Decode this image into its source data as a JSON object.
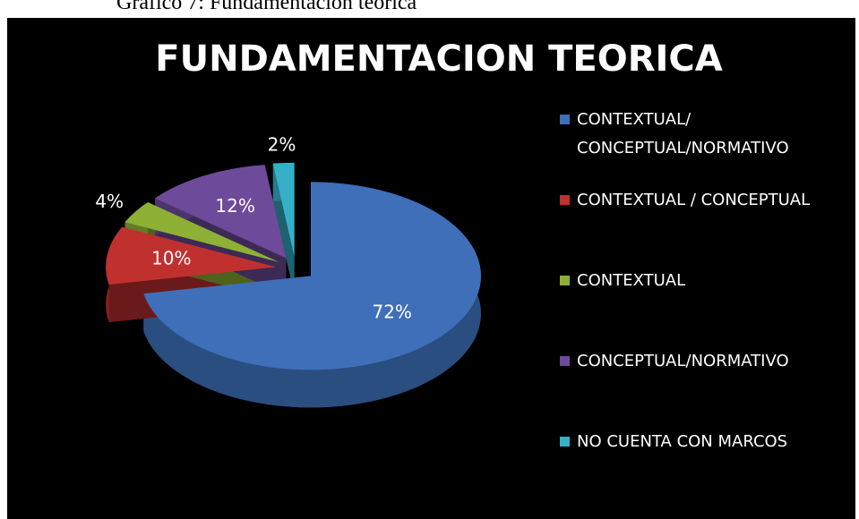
{
  "caption": "Gráfico 7: Fundamentación teórica",
  "chart_data": {
    "type": "pie",
    "title": "FUNDAMENTACION TEORICA",
    "categories": [
      "CONTEXTUAL/ CONCEPTUAL/NORMATIVO",
      "CONTEXTUAL / CONCEPTUAL",
      "CONTEXTUAL",
      "CONCEPTUAL/NORMATIVO",
      "NO CUENTA CON MARCOS"
    ],
    "values": [
      72,
      10,
      4,
      12,
      2
    ],
    "value_labels": [
      "72%",
      "10%",
      "4%",
      "12%",
      "2%"
    ],
    "colors": [
      "#3e6fb8",
      "#c0302f",
      "#8db035",
      "#6e4a9b",
      "#36b0c9"
    ],
    "legend": "right"
  }
}
